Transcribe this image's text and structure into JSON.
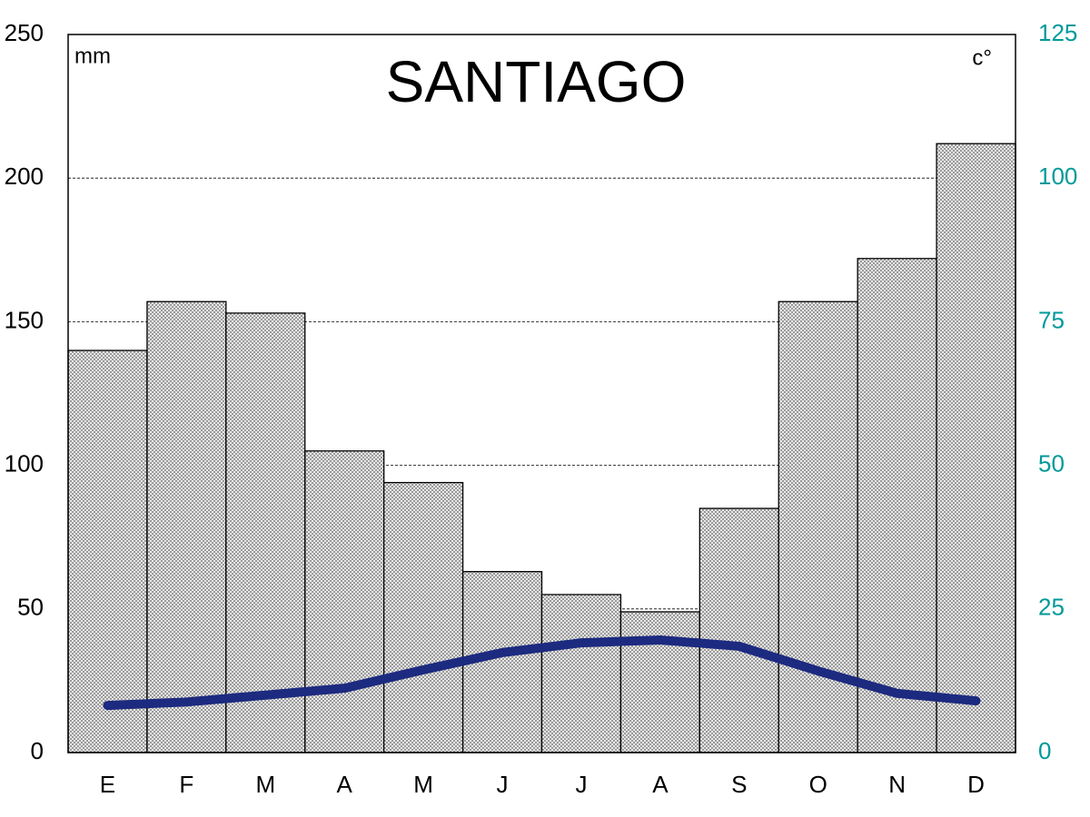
{
  "chart_data": {
    "type": "bar",
    "title": "SANTIAGO",
    "y_label": "mm",
    "y2_label": "c°",
    "categories": [
      "E",
      "F",
      "M",
      "A",
      "M",
      "J",
      "J",
      "A",
      "S",
      "O",
      "N",
      "D"
    ],
    "series": [
      {
        "type": "bar",
        "color": "#9a9a9a",
        "values": [
          140,
          157,
          153,
          105,
          94,
          63,
          55,
          49,
          85,
          157,
          172,
          212
        ]
      },
      {
        "type": "line",
        "axis": "y2",
        "color": "#1c2a80",
        "values": [
          8.2,
          8.8,
          10,
          11.2,
          14.4,
          17.4,
          19.1,
          19.6,
          18.5,
          14.2,
          10.3,
          9.0
        ]
      }
    ],
    "ylim": [
      0,
      250
    ],
    "yticks": [
      0,
      50,
      100,
      150,
      200,
      250
    ],
    "y2lim": [
      0,
      125
    ],
    "y2ticks": [
      0,
      25,
      50,
      75,
      100,
      125
    ],
    "y2_color": "#00999a",
    "grid": true
  }
}
